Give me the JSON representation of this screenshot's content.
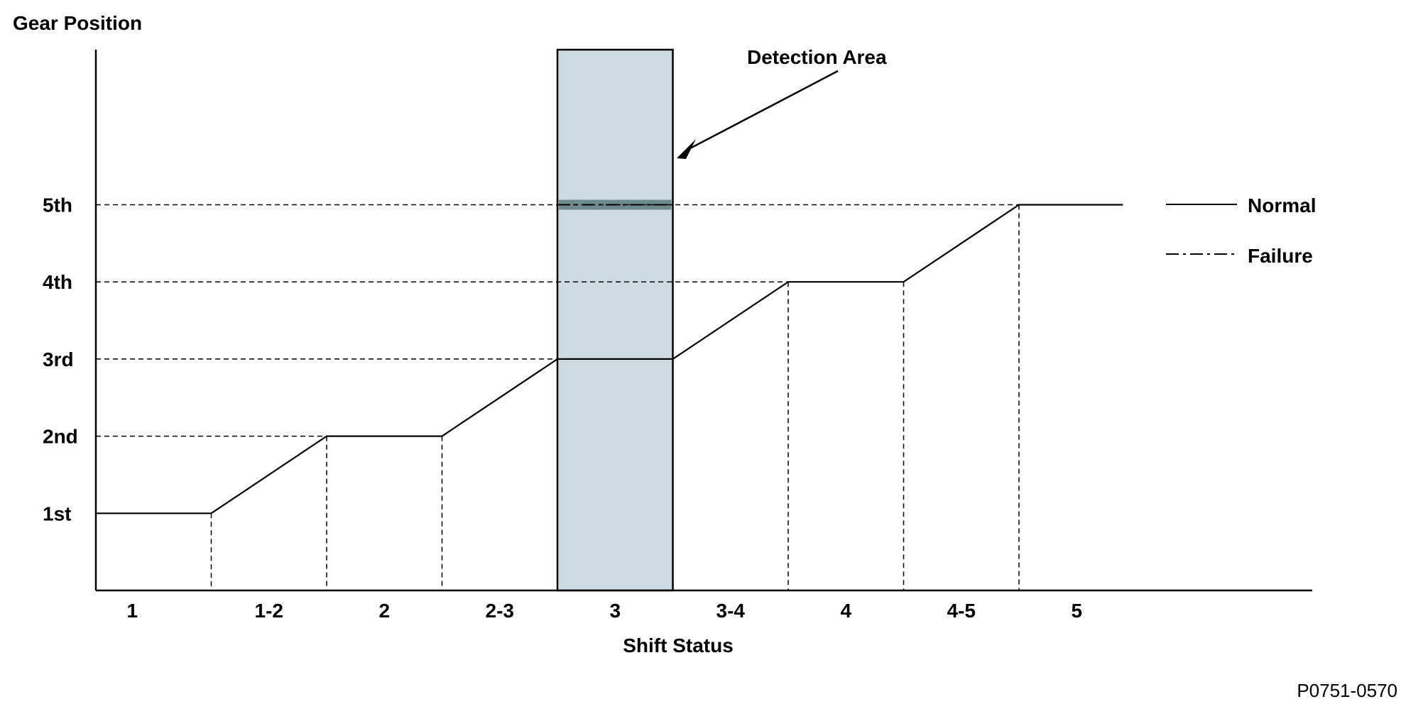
{
  "chart_data": {
    "type": "line",
    "ylabel": "Gear Position",
    "xlabel": "Shift Status",
    "y_categories": [
      "1st",
      "2nd",
      "3rd",
      "4th",
      "5th"
    ],
    "x_categories": [
      "1",
      "1-2",
      "2",
      "2-3",
      "3",
      "3-4",
      "4",
      "4-5",
      "5"
    ],
    "series": [
      {
        "name": "Normal",
        "style": "solid",
        "points": [
          {
            "x": 0,
            "y": 1
          },
          {
            "x": 1,
            "y": 1
          },
          {
            "x": 2,
            "y": 2
          },
          {
            "x": 3,
            "y": 2
          },
          {
            "x": 4,
            "y": 3
          },
          {
            "x": 5,
            "y": 3
          },
          {
            "x": 6,
            "y": 4
          },
          {
            "x": 7,
            "y": 4
          },
          {
            "x": 8,
            "y": 5
          },
          {
            "x": 8.9,
            "y": 5
          }
        ]
      },
      {
        "name": "Failure",
        "style": "dash-dot",
        "points": [
          {
            "x": 4,
            "y": 5
          },
          {
            "x": 5,
            "y": 5
          }
        ]
      }
    ],
    "highlight": {
      "label": "Detection Area",
      "x_start": 4,
      "x_end": 5,
      "color": "#ccdbe1"
    },
    "legend": {
      "position": "right",
      "entries": [
        {
          "label": "Normal",
          "style": "solid"
        },
        {
          "label": "Failure",
          "style": "dash-dot"
        }
      ]
    },
    "grid": "dashed-guides",
    "footnote": "P0751-0570"
  }
}
